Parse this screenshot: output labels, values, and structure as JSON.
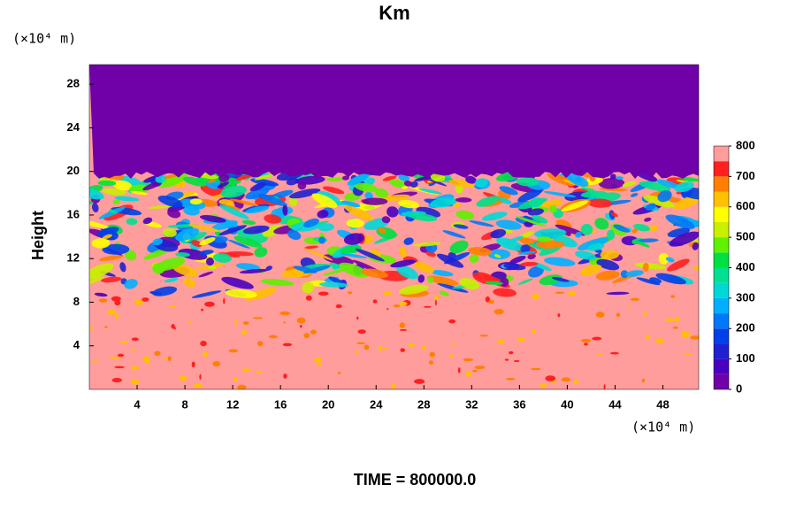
{
  "chart_data": {
    "type": "contour",
    "title": "Km",
    "ylabel": "Height",
    "xunit": "(×10⁴ m)",
    "yunit": "(×10⁴ m)",
    "footer": "TIME = 800000.0",
    "xlim": [
      0,
      51
    ],
    "xticks": [
      4,
      8,
      12,
      16,
      20,
      24,
      28,
      32,
      36,
      40,
      44,
      48
    ],
    "ylim": [
      0,
      29.8
    ],
    "yticks": [
      4,
      8,
      12,
      16,
      20,
      24,
      28
    ],
    "clim": [
      0,
      800
    ],
    "cticks": [
      0,
      100,
      200,
      300,
      400,
      500,
      600,
      700,
      800
    ],
    "colors": [
      "#7000a8",
      "#4a00c0",
      "#2020d0",
      "#0040e8",
      "#0078f8",
      "#00b0ff",
      "#00d8d8",
      "#00e090",
      "#00e040",
      "#60f000",
      "#c8f000",
      "#ffff00",
      "#ffc000",
      "#ff8000",
      "#ff2020",
      "#ff9c9c"
    ]
  }
}
